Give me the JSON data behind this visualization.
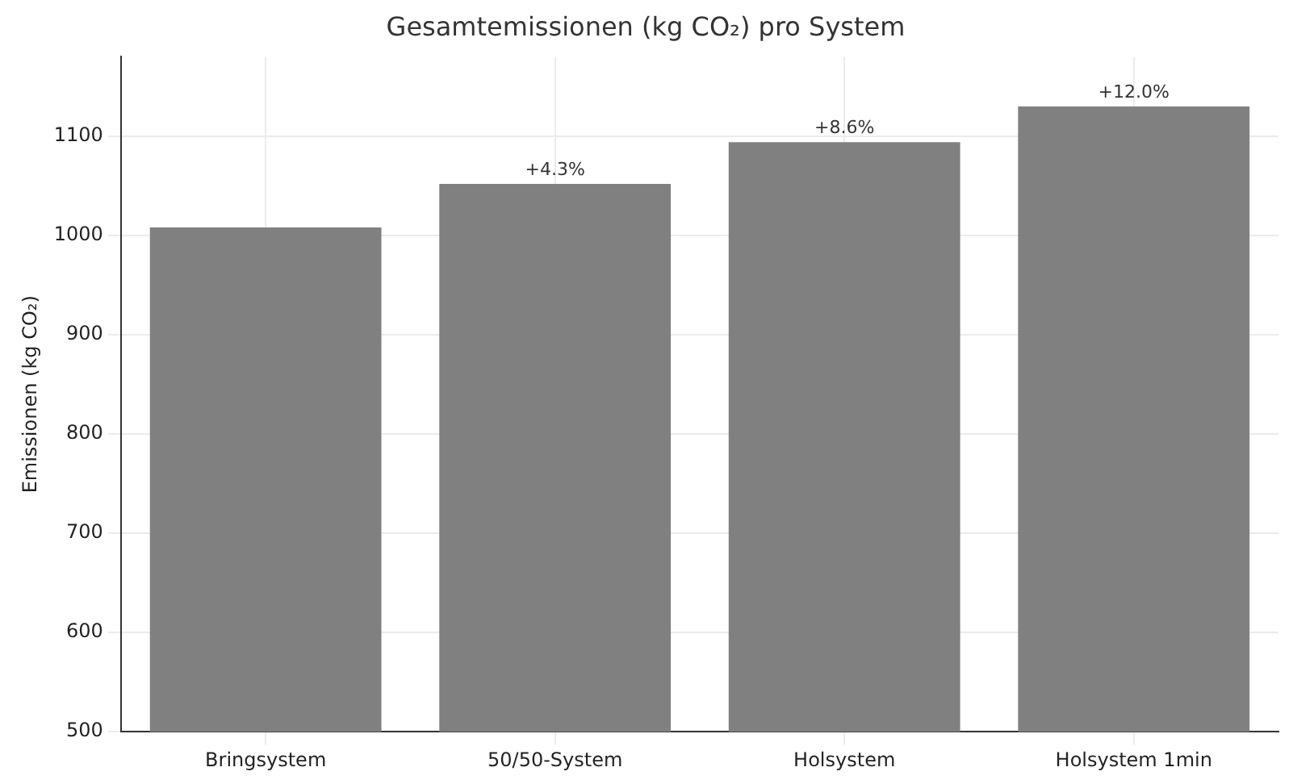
{
  "chart_data": {
    "type": "bar",
    "title": "Gesamtemissionen (kg CO₂) pro System",
    "ylabel": "Emissionen (kg CO₂)",
    "categories": [
      "Bringsystem",
      "50/50-System",
      "Holsystem",
      "Holsystem 1min"
    ],
    "values": [
      1008,
      1052,
      1094,
      1130
    ],
    "color": "#808080",
    "annotations": [
      {
        "text": "+4.3%",
        "x": "50/50-System",
        "y": 1052
      },
      {
        "text": "+8.6%",
        "x": "Holsystem",
        "y": 1094
      },
      {
        "text": "+12.0%",
        "x": "Holsystem 1min",
        "y": 1130
      }
    ],
    "ylim": [
      500,
      1180
    ],
    "yticks": [
      500,
      600,
      700,
      800,
      900,
      1000,
      1100
    ],
    "grid": true
  }
}
